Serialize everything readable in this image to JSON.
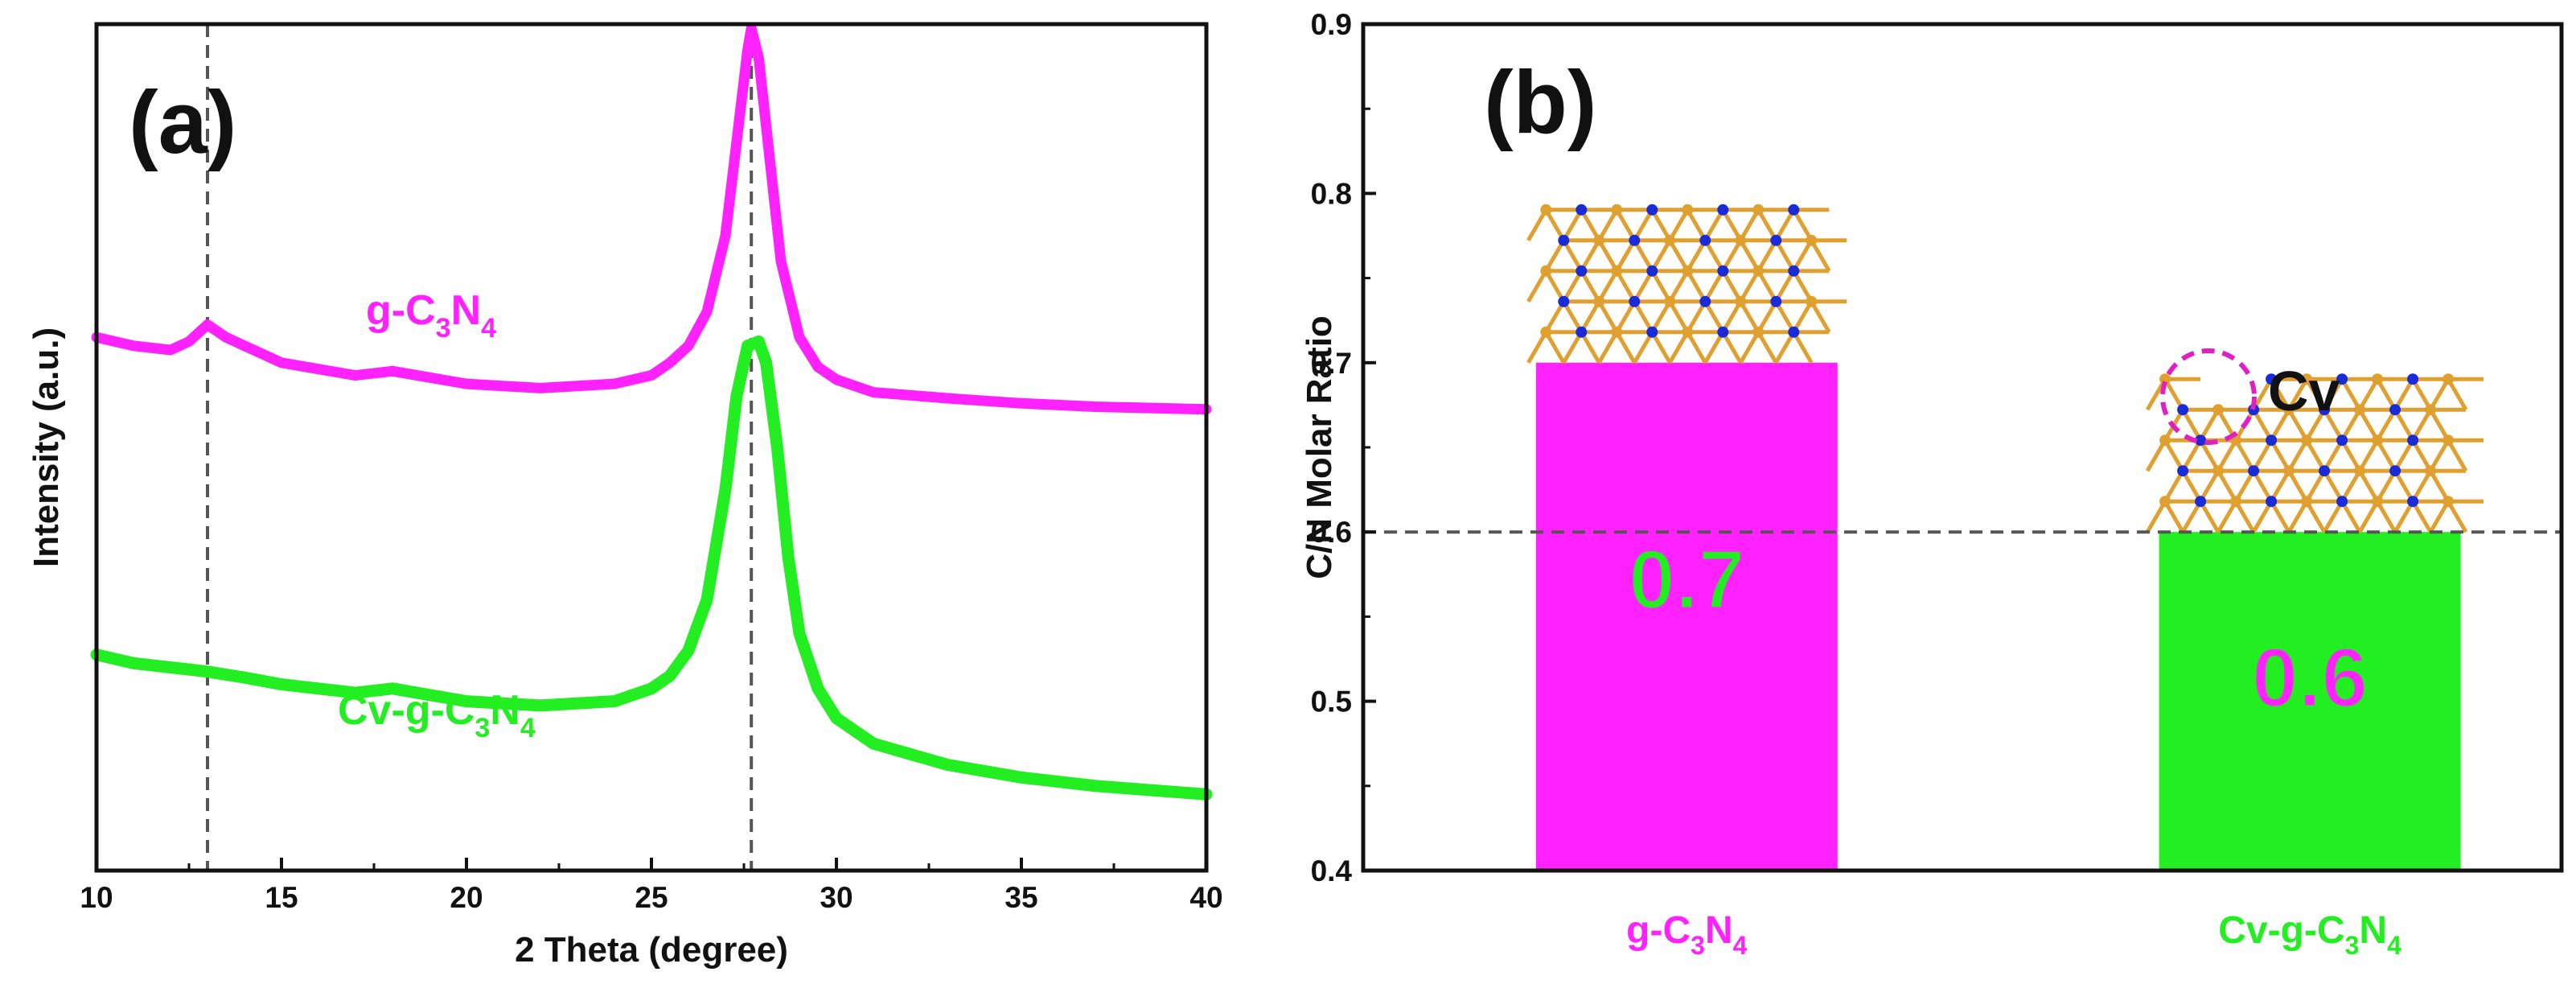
{
  "colors": {
    "magenta": "#ff22ff",
    "green": "#22ee22",
    "axis": "#111111",
    "refline": "#555555"
  },
  "chart_data": [
    {
      "type": "line",
      "panel_label": "(a)",
      "xlabel": "2 Theta (degree)",
      "ylabel": "Intensity (a.u.)",
      "xlim": [
        10,
        40
      ],
      "xticks": [
        "10",
        "15",
        "20",
        "25",
        "30",
        "35",
        "40"
      ],
      "yticks_shown": false,
      "reference_lines_x": [
        13.0,
        27.7
      ],
      "series": [
        {
          "name": "g-C3N4",
          "label_main": "g-C",
          "label_sub1": "3",
          "label_mid": "N",
          "label_sub2": "4",
          "color": "#ff22ff",
          "x": [
            10,
            11,
            12,
            12.5,
            13.0,
            13.5,
            14,
            15,
            17,
            18,
            20,
            22,
            24,
            25,
            25.5,
            26,
            26.5,
            27,
            27.3,
            27.6,
            27.7,
            27.9,
            28.2,
            28.5,
            29,
            29.5,
            30,
            31,
            33,
            35,
            37,
            40
          ],
          "y": [
            0.63,
            0.62,
            0.615,
            0.625,
            0.645,
            0.63,
            0.62,
            0.6,
            0.585,
            0.59,
            0.575,
            0.57,
            0.575,
            0.585,
            0.6,
            0.62,
            0.66,
            0.75,
            0.86,
            0.97,
            0.995,
            0.96,
            0.84,
            0.72,
            0.63,
            0.595,
            0.58,
            0.565,
            0.558,
            0.552,
            0.548,
            0.545
          ]
        },
        {
          "name": "Cv-g-C3N4",
          "label_main": "Cv-g-C",
          "label_sub1": "3",
          "label_mid": "N",
          "label_sub2": "4",
          "color": "#22ee22",
          "x": [
            10,
            11,
            12,
            13,
            14,
            15,
            17,
            18,
            20,
            22,
            24,
            25,
            25.5,
            26,
            26.5,
            27,
            27.3,
            27.6,
            27.9,
            28.1,
            28.4,
            28.7,
            29,
            29.5,
            30,
            31,
            33,
            35,
            37,
            40
          ],
          "y": [
            0.255,
            0.245,
            0.24,
            0.235,
            0.228,
            0.22,
            0.21,
            0.215,
            0.2,
            0.195,
            0.2,
            0.215,
            0.23,
            0.26,
            0.32,
            0.45,
            0.56,
            0.62,
            0.625,
            0.6,
            0.5,
            0.37,
            0.28,
            0.215,
            0.18,
            0.15,
            0.125,
            0.11,
            0.1,
            0.09
          ]
        }
      ]
    },
    {
      "type": "bar",
      "panel_label": "(b)",
      "xlabel": "",
      "ylabel": "C/N Molar Ratio",
      "ylim": [
        0.4,
        0.9
      ],
      "yticks": [
        "0.4",
        "0.5",
        "0.6",
        "0.7",
        "0.8",
        "0.9"
      ],
      "reference_line_y": 0.6,
      "categories": [
        {
          "main": "g-C",
          "sub1": "3",
          "mid": "N",
          "sub2": "4"
        },
        {
          "main": "Cv-g-C",
          "sub1": "3",
          "mid": "N",
          "sub2": "4"
        }
      ],
      "values": [
        0.7,
        0.6
      ],
      "value_labels": [
        "0.7",
        "0.6"
      ],
      "bar_colors": [
        "#ff22ff",
        "#22ee22"
      ],
      "value_label_colors": [
        "#22ee22",
        "#ff22ff"
      ],
      "annotation": "Cv"
    }
  ]
}
